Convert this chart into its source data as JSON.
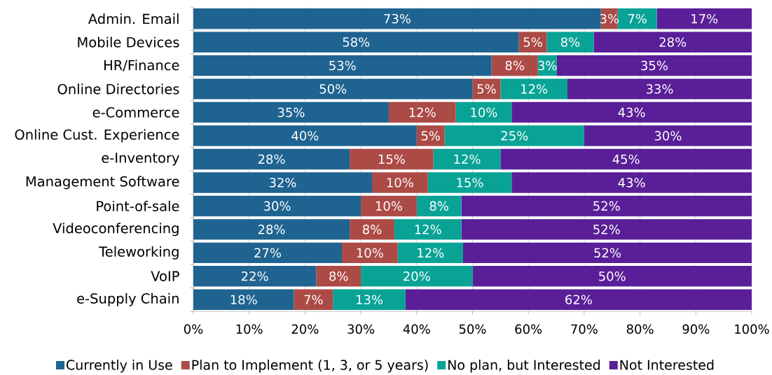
{
  "chart_data": {
    "type": "bar",
    "orientation": "horizontal",
    "stacked": true,
    "categories": [
      "Admin. Email",
      "Mobile Devices",
      "HR/Finance",
      "Online Directories",
      "e-Commerce",
      "Online Cust. Experience",
      "e-Inventory",
      "Management Software",
      "Point-of-sale",
      "Videoconferencing",
      "Teleworking",
      "VoIP",
      "e-Supply Chain"
    ],
    "series": [
      {
        "name": "Currently in Use",
        "color": "#1F6391",
        "values": [
          73,
          58.3,
          53.4,
          50,
          35,
          40,
          28,
          32,
          30,
          28,
          26.6,
          22,
          18
        ],
        "value_labels": [
          "73%",
          "58%",
          "53%",
          "50%",
          "35%",
          "40%",
          "28%",
          "32%",
          "30%",
          "28%",
          "27%",
          "22%",
          "18%"
        ]
      },
      {
        "name": "Plan to Implement (1, 3, or 5 years)",
        "color": "#AC4A46",
        "values": [
          3,
          5,
          8.3,
          5,
          12,
          5,
          15,
          10,
          10,
          8,
          10,
          8,
          7
        ],
        "value_labels": [
          "3%",
          "5%",
          "8%",
          "5%",
          "12%",
          "5%",
          "15%",
          "10%",
          "10%",
          "8%",
          "10%",
          "8%",
          "7%"
        ]
      },
      {
        "name": "No plan, but Interested",
        "color": "#09A396",
        "values": [
          7,
          8.4,
          3.4,
          12,
          10,
          25,
          12,
          15,
          8,
          12,
          11.7,
          20,
          13
        ],
        "value_labels": [
          "7%",
          "8%",
          "3%",
          "12%",
          "10%",
          "25%",
          "12%",
          "15%",
          "8%",
          "12%",
          "12%",
          "20%",
          "13%"
        ]
      },
      {
        "name": "Not Interested",
        "color": "#5A1F98",
        "values": [
          17,
          28.3,
          34.9,
          33,
          43,
          30,
          45,
          43,
          52,
          52,
          51.7,
          50,
          62
        ],
        "value_labels": [
          "17%",
          "28%",
          "35%",
          "33%",
          "43%",
          "30%",
          "45%",
          "43%",
          "52%",
          "52%",
          "52%",
          "50%",
          "62%"
        ]
      }
    ],
    "xlim": [
      0,
      100
    ],
    "xticks": [
      {
        "value": 0,
        "label": "0%"
      },
      {
        "value": 10,
        "label": "10%"
      },
      {
        "value": 20,
        "label": "20%"
      },
      {
        "value": 30,
        "label": "30%"
      },
      {
        "value": 40,
        "label": "40%"
      },
      {
        "value": 50,
        "label": "50%"
      },
      {
        "value": 60,
        "label": "60%"
      },
      {
        "value": 70,
        "label": "70%"
      },
      {
        "value": 80,
        "label": "80%"
      },
      {
        "value": 90,
        "label": "90%"
      },
      {
        "value": 100,
        "label": "100%"
      }
    ],
    "grid": "x",
    "legend": "bottom"
  }
}
